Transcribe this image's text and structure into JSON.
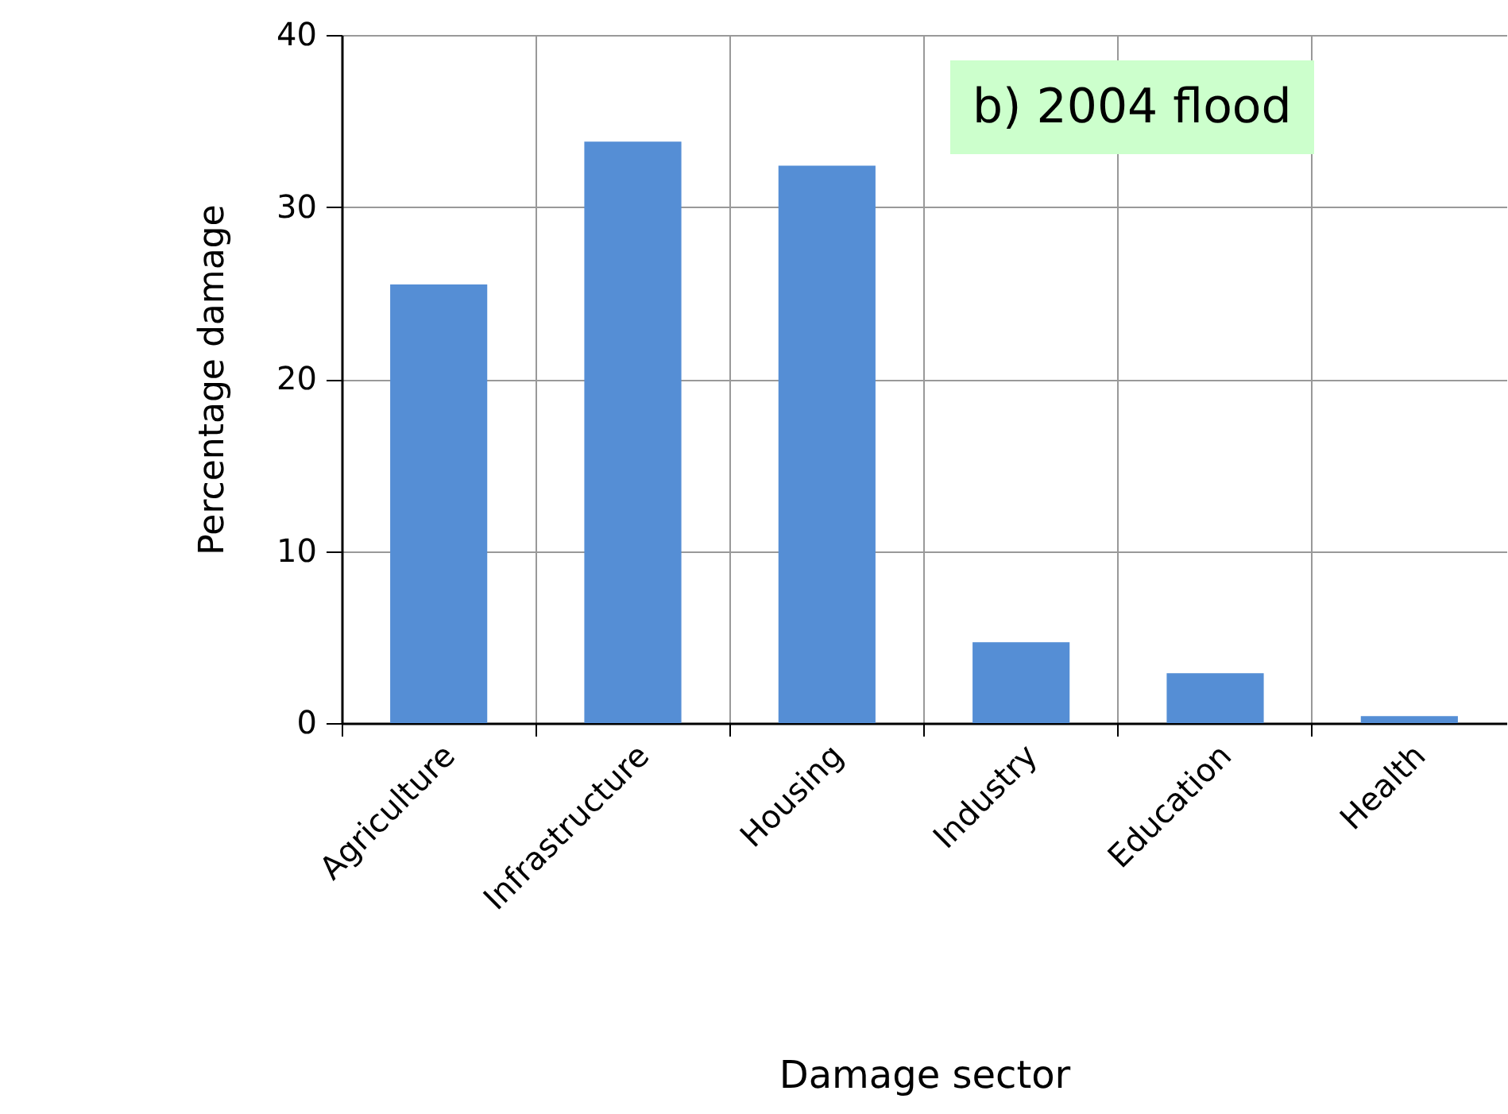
{
  "chart_data": {
    "type": "bar",
    "xlabel": "Damage sector",
    "ylabel": "Percentage damage",
    "categories": [
      "Agriculture",
      "Infrastructure",
      "Housing",
      "Industry",
      "Education",
      "Health"
    ],
    "values": [
      25.5,
      33.8,
      32.4,
      4.7,
      2.9,
      0.4
    ],
    "color": "#558ed5",
    "ylim": [
      0,
      40
    ],
    "yticks": [
      0,
      10,
      20,
      30,
      40
    ],
    "grid": true,
    "annotations": [
      "b) 2004 flood"
    ]
  }
}
